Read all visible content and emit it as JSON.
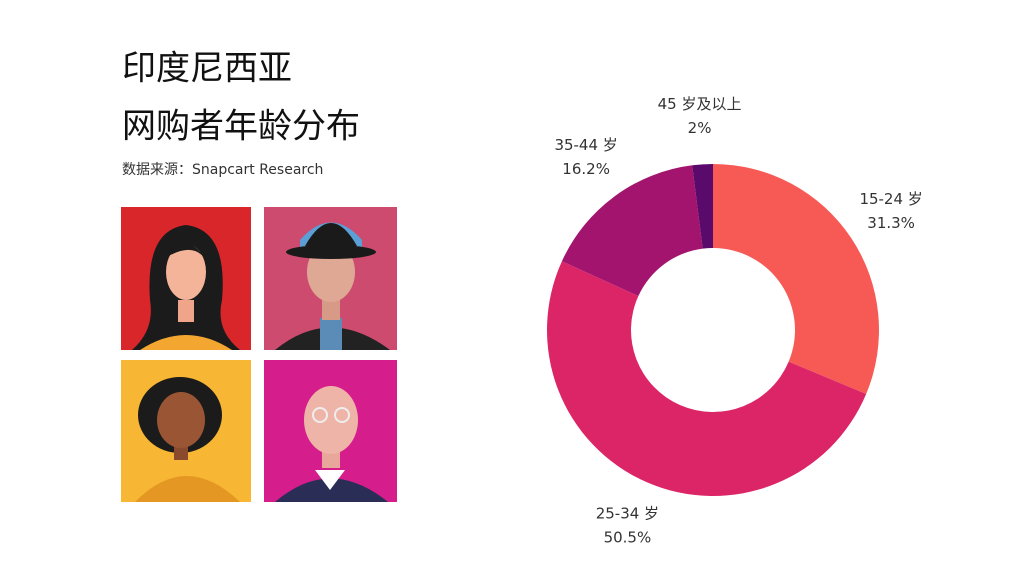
{
  "chart_data": {
    "type": "pie",
    "title": "印度尼西亚",
    "subtitle": "网购者年龄分布",
    "source": "数据来源：Snapcart Research",
    "categories": [
      "15-24 岁",
      "25-34 岁",
      "35-44 岁",
      "45 岁及以上"
    ],
    "values": [
      31.3,
      50.5,
      16.2,
      2
    ],
    "value_labels": [
      "31.3%",
      "50.5%",
      "16.2%",
      "2%"
    ],
    "colors": [
      "#f75a55",
      "#dc2566",
      "#a3146f",
      "#5a0a6b"
    ],
    "donut": true
  }
}
